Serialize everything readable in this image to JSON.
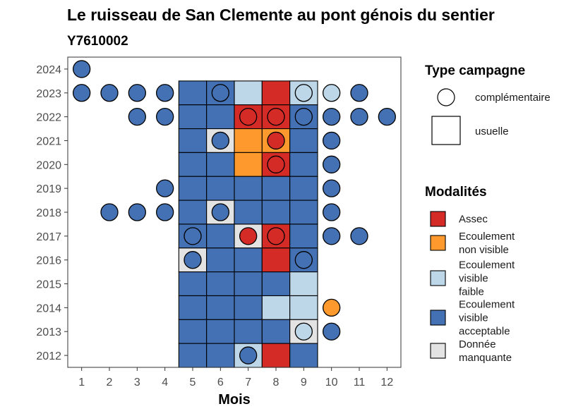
{
  "chart_data": {
    "type": "heatmap",
    "title": "Le ruisseau de San Clemente au pont génois du sentier",
    "subtitle": "Y7610002",
    "xlabel": "Mois",
    "ylabel": "",
    "x_ticks": [
      1,
      2,
      3,
      4,
      5,
      6,
      7,
      8,
      9,
      10,
      11,
      12
    ],
    "y_ticks": [
      2012,
      2013,
      2014,
      2015,
      2016,
      2017,
      2018,
      2019,
      2020,
      2021,
      2022,
      2023,
      2024
    ],
    "xlim": [
      0.5,
      12.5
    ],
    "ylim": [
      2011.5,
      2024.5
    ],
    "grid": false,
    "legend_placement": "right",
    "modalites": [
      {
        "key": "A",
        "label": "Assec",
        "lines": [
          "Assec"
        ],
        "color": "#d52b27"
      },
      {
        "key": "N",
        "label": "Ecoulement non visible",
        "lines": [
          "Ecoulement",
          "non visible"
        ],
        "color": "#fe9a2d"
      },
      {
        "key": "F",
        "label": "Ecoulement visible faible",
        "lines": [
          "Ecoulement",
          "visible",
          "faible"
        ],
        "color": "#bdd7e8"
      },
      {
        "key": "V",
        "label": "Ecoulement visible acceptable",
        "lines": [
          "Ecoulement",
          "visible",
          "acceptable"
        ],
        "color": "#4371b3"
      },
      {
        "key": "M",
        "label": "Donnée manquante",
        "lines": [
          "Donnée",
          "manquante"
        ],
        "color": "#e3e3e3"
      }
    ],
    "type_campagne": {
      "title": "Type campagne",
      "items": [
        {
          "key": "complementaire",
          "label": "complémentaire",
          "shape": "circle"
        },
        {
          "key": "usuelle",
          "label": "usuelle",
          "shape": "square"
        }
      ]
    },
    "legend_modalites_title": "Modalités",
    "usuelle": [
      {
        "year": 2023,
        "values": {
          "5": "V",
          "6": "V",
          "7": "F",
          "8": "A",
          "9": "F"
        }
      },
      {
        "year": 2022,
        "values": {
          "5": "V",
          "6": "V",
          "7": "A",
          "8": "A",
          "9": "V"
        }
      },
      {
        "year": 2021,
        "values": {
          "5": "V",
          "6": "M",
          "7": "N",
          "8": "N",
          "9": "V"
        }
      },
      {
        "year": 2020,
        "values": {
          "5": "V",
          "6": "V",
          "7": "N",
          "8": "A",
          "9": "V"
        }
      },
      {
        "year": 2019,
        "values": {
          "5": "V",
          "6": "V",
          "7": "V",
          "8": "V",
          "9": "V"
        }
      },
      {
        "year": 2018,
        "values": {
          "5": "V",
          "6": "M",
          "7": "V",
          "8": "V",
          "9": "V"
        }
      },
      {
        "year": 2017,
        "values": {
          "5": "V",
          "6": "V",
          "7": "M",
          "8": "A",
          "9": "V"
        }
      },
      {
        "year": 2016,
        "values": {
          "5": "M",
          "6": "V",
          "7": "V",
          "8": "A",
          "9": "V"
        }
      },
      {
        "year": 2015,
        "values": {
          "5": "V",
          "6": "V",
          "7": "V",
          "8": "V",
          "9": "F"
        }
      },
      {
        "year": 2014,
        "values": {
          "5": "V",
          "6": "V",
          "7": "V",
          "8": "F",
          "9": "F"
        }
      },
      {
        "year": 2013,
        "values": {
          "5": "V",
          "6": "V",
          "7": "V",
          "8": "V",
          "9": "M"
        }
      },
      {
        "year": 2012,
        "values": {
          "5": "V",
          "6": "V",
          "7": "F",
          "8": "A",
          "9": "V"
        }
      }
    ],
    "complementaire": [
      {
        "year": 2024,
        "month": 1,
        "value": "V"
      },
      {
        "year": 2023,
        "month": 1,
        "value": "V"
      },
      {
        "year": 2023,
        "month": 2,
        "value": "V"
      },
      {
        "year": 2023,
        "month": 3,
        "value": "V"
      },
      {
        "year": 2023,
        "month": 4,
        "value": "V"
      },
      {
        "year": 2023,
        "month": 6,
        "value": "V"
      },
      {
        "year": 2023,
        "month": 9,
        "value": "F"
      },
      {
        "year": 2023,
        "month": 10,
        "value": "F"
      },
      {
        "year": 2023,
        "month": 11,
        "value": "V"
      },
      {
        "year": 2022,
        "month": 3,
        "value": "V"
      },
      {
        "year": 2022,
        "month": 4,
        "value": "V"
      },
      {
        "year": 2022,
        "month": 7,
        "value": "A"
      },
      {
        "year": 2022,
        "month": 8,
        "value": "A"
      },
      {
        "year": 2022,
        "month": 9,
        "value": "V"
      },
      {
        "year": 2022,
        "month": 10,
        "value": "V"
      },
      {
        "year": 2022,
        "month": 11,
        "value": "V"
      },
      {
        "year": 2022,
        "month": 12,
        "value": "V"
      },
      {
        "year": 2021,
        "month": 6,
        "value": "V"
      },
      {
        "year": 2021,
        "month": 8,
        "value": "A"
      },
      {
        "year": 2021,
        "month": 10,
        "value": "V"
      },
      {
        "year": 2020,
        "month": 8,
        "value": "A"
      },
      {
        "year": 2020,
        "month": 10,
        "value": "V"
      },
      {
        "year": 2019,
        "month": 4,
        "value": "V"
      },
      {
        "year": 2019,
        "month": 10,
        "value": "V"
      },
      {
        "year": 2018,
        "month": 2,
        "value": "V"
      },
      {
        "year": 2018,
        "month": 3,
        "value": "V"
      },
      {
        "year": 2018,
        "month": 4,
        "value": "V"
      },
      {
        "year": 2018,
        "month": 6,
        "value": "V"
      },
      {
        "year": 2018,
        "month": 10,
        "value": "V"
      },
      {
        "year": 2017,
        "month": 5,
        "value": "V"
      },
      {
        "year": 2017,
        "month": 7,
        "value": "A"
      },
      {
        "year": 2017,
        "month": 8,
        "value": "A"
      },
      {
        "year": 2017,
        "month": 10,
        "value": "V"
      },
      {
        "year": 2017,
        "month": 11,
        "value": "V"
      },
      {
        "year": 2016,
        "month": 5,
        "value": "V"
      },
      {
        "year": 2016,
        "month": 9,
        "value": "V"
      },
      {
        "year": 2014,
        "month": 10,
        "value": "N"
      },
      {
        "year": 2013,
        "month": 9,
        "value": "F"
      },
      {
        "year": 2013,
        "month": 10,
        "value": "V"
      },
      {
        "year": 2012,
        "month": 7,
        "value": "V"
      }
    ]
  }
}
